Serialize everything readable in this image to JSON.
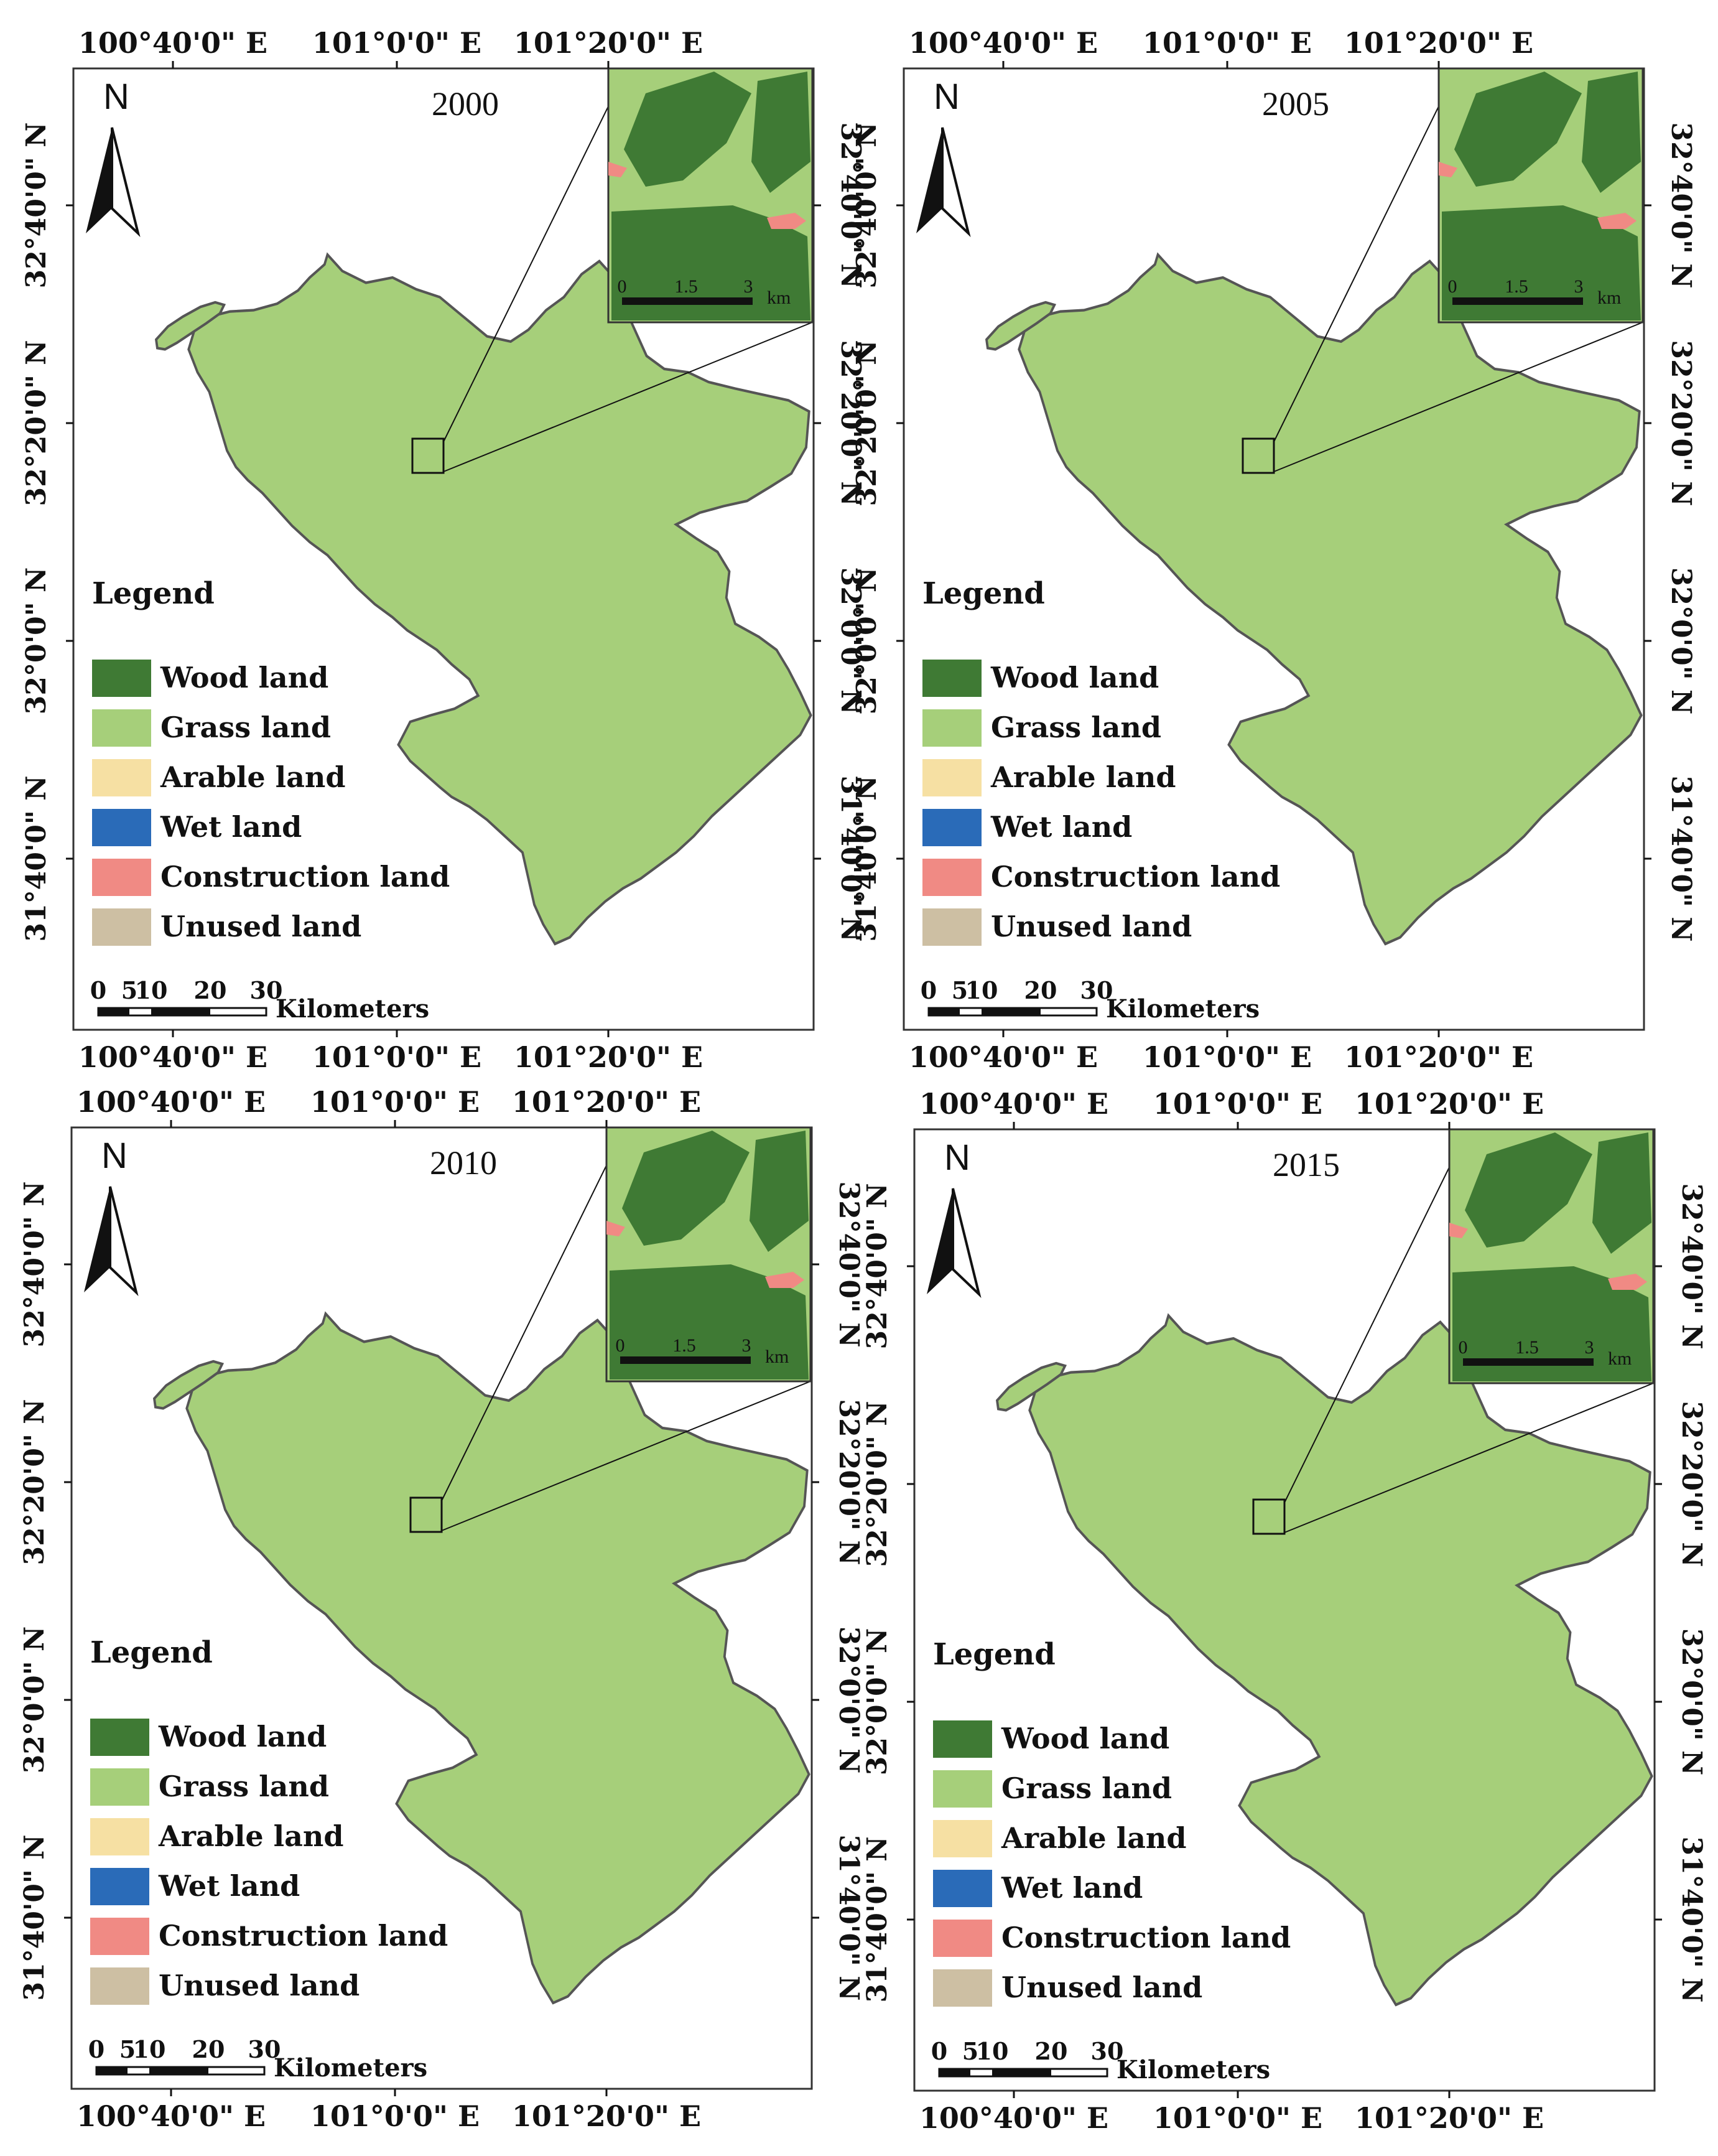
{
  "colors": {
    "wood": "#3f7a34",
    "grass": "#a6cf7a",
    "arable": "#f6e0a3",
    "wet": "#2a6bb8",
    "construction": "#f08a84",
    "unused": "#cdbfa3"
  },
  "panels": [
    {
      "year": "2000",
      "top_lons": [
        "100°40'0\" E",
        "101°0'0\" E",
        "101°20'0\" E"
      ],
      "bottom_lons": [
        "100°40'0\" E",
        "101°0'0\" E",
        "101°20'0\" E"
      ],
      "lats": [
        "32°40'0\" N",
        "32°20'0\" N",
        "32°0'0\" N",
        "31°40'0\" N"
      ]
    },
    {
      "year": "2005",
      "top_lons": [
        "100°40'0\" E",
        "101°0'0\" E",
        "101°20'0\" E"
      ],
      "bottom_lons": [
        "100°40'0\" E",
        "101°0'0\" E",
        "101°20'0\" E"
      ],
      "lats": [
        "32°40'0\" N",
        "32°20'0\" N",
        "32°0'0\" N",
        "31°40'0\" N"
      ]
    },
    {
      "year": "2010",
      "top_lons": [
        "100°40'0\" E",
        "101°0'0\" E",
        "101°20'0\" E"
      ],
      "bottom_lons": [
        "100°40'0\" E",
        "101°0'0\" E",
        "101°20'0\" E"
      ],
      "lats": [
        "32°40'0\" N",
        "32°20'0\" N",
        "32°0'0\" N",
        "31°40'0\" N"
      ]
    },
    {
      "year": "2015",
      "top_lons": [
        "100°40'0\" E",
        "101°0'0\" E",
        "101°20'0\" E"
      ],
      "bottom_lons": [
        "100°40'0\" E",
        "101°0'0\" E",
        "101°20'0\" E"
      ],
      "lats": [
        "32°40'0\" N",
        "32°20'0\" N",
        "32°0'0\" N",
        "31°40'0\" N"
      ]
    }
  ],
  "legend": {
    "title": "Legend",
    "items": [
      {
        "label": "Wood land",
        "color_key": "wood"
      },
      {
        "label": "Grass land",
        "color_key": "grass"
      },
      {
        "label": "Arable land",
        "color_key": "arable"
      },
      {
        "label": "Wet land",
        "color_key": "wet"
      },
      {
        "label": "Construction land",
        "color_key": "construction"
      },
      {
        "label": "Unused land",
        "color_key": "unused"
      }
    ]
  },
  "north_arrow": {
    "letter": "N",
    "icon": "north-arrow-icon"
  },
  "scale_bar": {
    "ticks": [
      "0",
      "5",
      "10",
      "20",
      "30"
    ],
    "unit": "Kilometers"
  },
  "inset_scale": {
    "ticks": [
      "0",
      "1.5",
      "3"
    ],
    "unit": "km"
  }
}
